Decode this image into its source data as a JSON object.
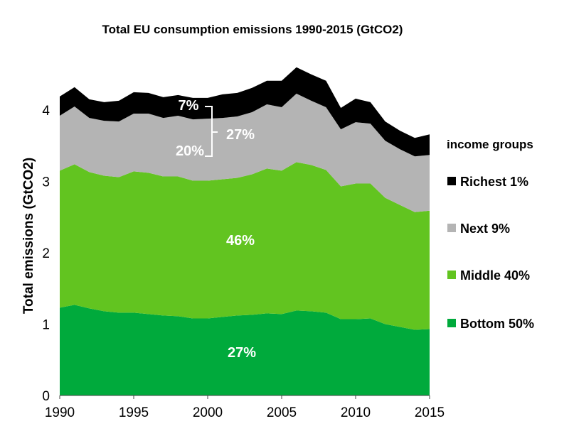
{
  "chart_data": {
    "type": "area",
    "stacked": true,
    "title": "Total EU consumption emissions 1990-2015 (GtCO2)",
    "ylabel": "Total  emissions (GtCO2)",
    "xlabel": "",
    "xlim": [
      1990,
      2015
    ],
    "ylim": [
      0,
      4.4
    ],
    "x_ticks": [
      "1990",
      "1995",
      "2000",
      "2005",
      "2010",
      "2015"
    ],
    "y_ticks": [
      "0",
      "1",
      "2",
      "3",
      "4"
    ],
    "x": [
      1990,
      1991,
      1992,
      1993,
      1994,
      1995,
      1996,
      1997,
      1998,
      1999,
      2000,
      2001,
      2002,
      2003,
      2004,
      2005,
      2006,
      2007,
      2008,
      2009,
      2010,
      2011,
      2012,
      2013,
      2014,
      2015
    ],
    "legend_title": "income groups",
    "legend_position": "right",
    "series": [
      {
        "name": "Bottom 50%",
        "color": "#00aa3c",
        "values": [
          1.23,
          1.27,
          1.22,
          1.18,
          1.16,
          1.16,
          1.14,
          1.12,
          1.11,
          1.08,
          1.08,
          1.1,
          1.12,
          1.13,
          1.15,
          1.14,
          1.19,
          1.18,
          1.16,
          1.07,
          1.07,
          1.08,
          1.0,
          0.96,
          0.92,
          0.93
        ]
      },
      {
        "name": "Middle 40%",
        "color": "#62c420",
        "values": [
          1.92,
          1.97,
          1.91,
          1.9,
          1.9,
          1.98,
          1.98,
          1.95,
          1.96,
          1.93,
          1.93,
          1.93,
          1.93,
          1.97,
          2.03,
          2.01,
          2.08,
          2.05,
          2.0,
          1.86,
          1.9,
          1.89,
          1.77,
          1.71,
          1.65,
          1.66
        ]
      },
      {
        "name": "Next 9%",
        "color": "#b4b4b4",
        "values": [
          0.77,
          0.81,
          0.76,
          0.77,
          0.78,
          0.81,
          0.83,
          0.82,
          0.85,
          0.86,
          0.87,
          0.86,
          0.86,
          0.87,
          0.9,
          0.89,
          0.96,
          0.9,
          0.88,
          0.8,
          0.86,
          0.84,
          0.8,
          0.78,
          0.78,
          0.78
        ]
      },
      {
        "name": "Richest 1%",
        "color": "#000000",
        "values": [
          0.27,
          0.27,
          0.26,
          0.26,
          0.29,
          0.3,
          0.29,
          0.29,
          0.29,
          0.3,
          0.29,
          0.33,
          0.33,
          0.34,
          0.33,
          0.37,
          0.37,
          0.37,
          0.37,
          0.3,
          0.33,
          0.3,
          0.27,
          0.26,
          0.26,
          0.29
        ]
      }
    ],
    "share_labels": {
      "bottom": "27%",
      "middle": "46%",
      "next": "27%",
      "next_1990": "20%",
      "richest_1990": "7%"
    }
  }
}
